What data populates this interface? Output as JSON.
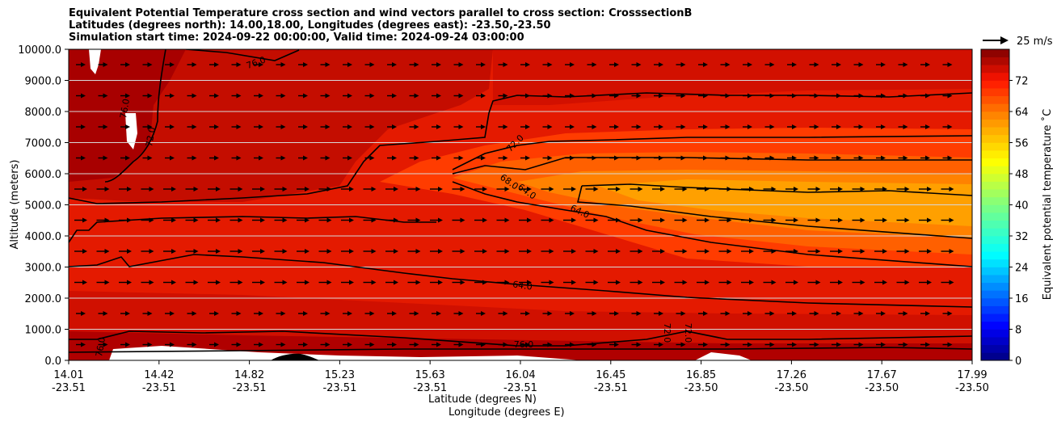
{
  "title": {
    "line1": "Equivalent Potential Temperature cross section and wind vectors parallel to cross section: CrosssectionB",
    "line2": "Latitudes (degrees north): 14.00,18.00, Longitudes (degrees east): -23.50,-23.50",
    "line3": "Simulation start time: 2024-09-22 00:00:00, Valid time: 2024-09-24 03:00:00"
  },
  "quiver_key": {
    "label": "25 m/s"
  },
  "colorbar": {
    "label": "Equivalent potential temperature ˚C",
    "ticks": [
      "0",
      "8",
      "16",
      "24",
      "32",
      "40",
      "48",
      "56",
      "64",
      "72"
    ],
    "range": [
      0,
      80
    ]
  },
  "chart_data": {
    "type": "heatmap",
    "title": "Equivalent Potential Temperature cross section and wind vectors parallel to cross section: CrosssectionB",
    "xlabel": "Latitude (degrees N)",
    "xlabel2": "Longitude (degrees E)",
    "ylabel": "Altitude (meters)",
    "ylim": [
      0,
      10000
    ],
    "x_tick_lat": [
      "14.01",
      "14.42",
      "14.82",
      "15.23",
      "15.63",
      "16.04",
      "16.45",
      "16.85",
      "17.26",
      "17.67",
      "17.99"
    ],
    "x_tick_lon": [
      "-23.51",
      "-23.51",
      "-23.51",
      "-23.51",
      "-23.51",
      "-23.51",
      "-23.51",
      "-23.50",
      "-23.50",
      "-23.50",
      "-23.50"
    ],
    "y_ticks": [
      "0.0",
      "1000.0",
      "2000.0",
      "3000.0",
      "4000.0",
      "5000.0",
      "6000.0",
      "7000.0",
      "8000.0",
      "9000.0",
      "10000.0"
    ],
    "grid": "horizontal",
    "contour_labels": [
      "76.0",
      "76.0",
      "72.0",
      "68.0",
      "64.0",
      "64.0",
      "64.0",
      "72.0",
      "76.0",
      "72.0",
      "72.0",
      "76.0"
    ],
    "field_description_values": {
      "upper_left_max": 78,
      "mid_core_min": 57,
      "background": 72
    },
    "wind_vectors": "parallel to cross section, pointing toward increasing latitude"
  }
}
